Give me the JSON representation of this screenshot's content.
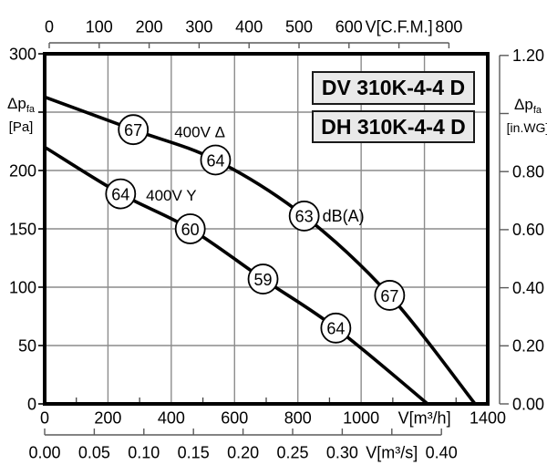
{
  "chart_data": {
    "type": "line",
    "titles": [
      "DV 310K-4-4 D",
      "DH 310K-4-4 D"
    ],
    "axes": {
      "top_cfm": {
        "unit_label": "V[C.F.M.]",
        "tick_labels": [
          "0",
          "100",
          "200",
          "300",
          "400",
          "500",
          "600",
          "V[C.F.M.]",
          "800"
        ]
      },
      "bottom_m3h": {
        "unit_label": "V[m³/h]",
        "range": [
          0,
          1400
        ],
        "tick_step": 200,
        "minor_tick_step": 100,
        "tick_labels": [
          "0",
          "200",
          "400",
          "600",
          "800",
          "1000",
          "V[m³/h]",
          "1400"
        ]
      },
      "bottom_m3s": {
        "unit_label": "V[m³/s]",
        "tick_labels": [
          "0.00",
          "0.05",
          "0.10",
          "0.15",
          "0.20",
          "0.25",
          "0.30",
          "V[m³/s]",
          "0.40"
        ]
      },
      "left_pa": {
        "quantity": "Δp",
        "quantity_sub": "fa",
        "unit": "[Pa]",
        "range": [
          0,
          300
        ],
        "grid_step": 50,
        "tick_labels_top_down": [
          "300",
          "",
          "200",
          "150",
          "100",
          "50",
          "0"
        ]
      },
      "right_inwg": {
        "quantity": "Δp",
        "quantity_sub": "fa",
        "unit": "[in.WG]",
        "range": [
          0,
          1.2
        ],
        "tick_labels_top_down": [
          "1.20",
          "",
          "0.80",
          "0.60",
          "0.40",
          "0.20",
          "0.00"
        ]
      }
    },
    "noise_unit_label": "dB(A)",
    "series": [
      {
        "id": "delta",
        "name": "400V Δ",
        "name_label_at": {
          "v_m3h": 490,
          "dp_pa": 233
        },
        "points_m3h_pa": [
          [
            0,
            263
          ],
          [
            280,
            235
          ],
          [
            540,
            209
          ],
          [
            820,
            161
          ],
          [
            1090,
            93
          ],
          [
            1360,
            0
          ]
        ],
        "db_markers": [
          {
            "v_m3h": 280,
            "dp_pa": 235,
            "db": "67"
          },
          {
            "v_m3h": 540,
            "dp_pa": 209,
            "db": "64"
          },
          {
            "v_m3h": 820,
            "dp_pa": 161,
            "db": "63",
            "show_unit": true
          },
          {
            "v_m3h": 1090,
            "dp_pa": 93,
            "db": "67"
          }
        ]
      },
      {
        "id": "wye",
        "name": "400V Y",
        "name_label_at": {
          "v_m3h": 400,
          "dp_pa": 179
        },
        "points_m3h_pa": [
          [
            0,
            220
          ],
          [
            240,
            180
          ],
          [
            460,
            150
          ],
          [
            690,
            107
          ],
          [
            920,
            65
          ],
          [
            1210,
            0
          ]
        ],
        "db_markers": [
          {
            "v_m3h": 240,
            "dp_pa": 180,
            "db": "64"
          },
          {
            "v_m3h": 460,
            "dp_pa": 150,
            "db": "60"
          },
          {
            "v_m3h": 690,
            "dp_pa": 107,
            "db": "59"
          },
          {
            "v_m3h": 920,
            "dp_pa": 65,
            "db": "64"
          }
        ]
      }
    ],
    "colors": {
      "curve": "#000000",
      "grid": "#8c8c8c",
      "border": "#000000",
      "ruler": "#5a5a5a",
      "title_box_bg": "#e9e9e9",
      "background": "#ffffff"
    }
  }
}
